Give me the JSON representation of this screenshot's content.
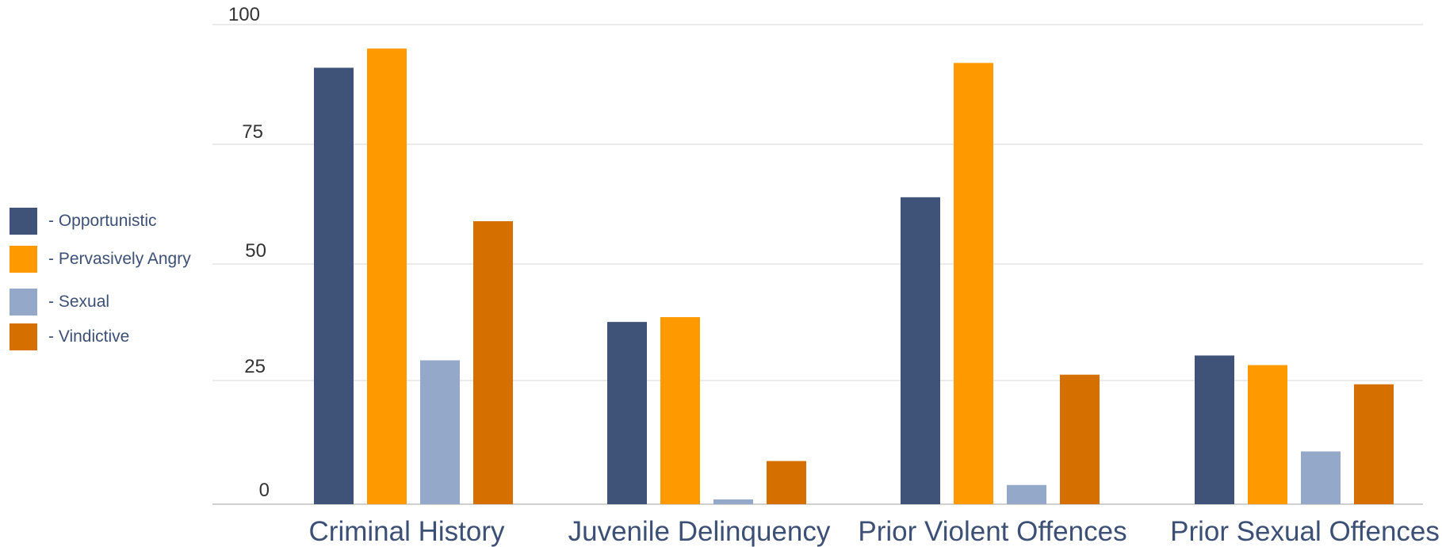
{
  "chart_data": {
    "type": "bar",
    "categories": [
      "Criminal History",
      "Juvenile Delinquency",
      "Prior Violent Offences",
      "Prior Sexual Offences"
    ],
    "series": [
      {
        "name": "- Opportunistic",
        "color": "#3f5278",
        "values": [
          91,
          38,
          64,
          31
        ]
      },
      {
        "name": "- Pervasively Angry",
        "color": "#ff9900",
        "values": [
          95,
          39,
          92,
          29
        ]
      },
      {
        "name": "- Sexual",
        "color": "#94a9c9",
        "values": [
          30,
          1,
          4,
          11
        ]
      },
      {
        "name": "- Vindictive",
        "color": "#d56f00",
        "values": [
          59,
          9,
          27,
          25
        ]
      }
    ],
    "yticks": [
      "0",
      "25",
      "50",
      "75",
      "100"
    ],
    "ylim": [
      0,
      100
    ],
    "grid": true,
    "legend_position": "left"
  }
}
